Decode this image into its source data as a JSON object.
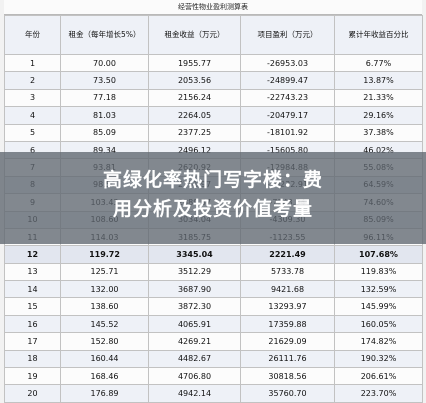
{
  "document": {
    "title": "经营性物业盈利测算表",
    "headers": [
      "年份",
      "租金（每年增长5%）",
      "租金收益（万元）",
      "项目盈利（万元）",
      "累计年收益百分比"
    ],
    "rows": [
      [
        "1",
        "70.00",
        "1955.77",
        "-26953.03",
        "6.77%"
      ],
      [
        "2",
        "73.50",
        "2053.56",
        "-24899.47",
        "13.87%"
      ],
      [
        "3",
        "77.18",
        "2156.24",
        "-22743.23",
        "21.33%"
      ],
      [
        "4",
        "81.03",
        "2264.05",
        "-20479.17",
        "29.16%"
      ],
      [
        "5",
        "85.09",
        "2377.25",
        "-18101.92",
        "37.38%"
      ],
      [
        "6",
        "89.34",
        "2496.12",
        "-15605.80",
        "46.02%"
      ],
      [
        "7",
        "93.81",
        "2620.92",
        "-12984.88",
        "55.08%"
      ],
      [
        "8",
        "98.50",
        "2751.97",
        "-10232.91",
        "64.59%"
      ],
      [
        "9",
        "103.43",
        "2889.57",
        "-7343.34",
        "74.60%"
      ],
      [
        "10",
        "108.60",
        "3034.04",
        "-4309.30",
        "85.09%"
      ],
      [
        "11",
        "114.03",
        "3185.75",
        "-1123.55",
        "96.11%"
      ],
      [
        "12",
        "119.72",
        "3345.04",
        "2221.49",
        "107.68%"
      ],
      [
        "13",
        "125.71",
        "3512.29",
        "5733.78",
        "119.83%"
      ],
      [
        "14",
        "132.00",
        "3687.90",
        "9421.68",
        "132.59%"
      ],
      [
        "15",
        "138.60",
        "3872.30",
        "13293.97",
        "145.99%"
      ],
      [
        "16",
        "145.52",
        "4065.91",
        "17359.88",
        "160.05%"
      ],
      [
        "17",
        "152.80",
        "4269.21",
        "21629.09",
        "174.82%"
      ],
      [
        "18",
        "160.44",
        "4482.67",
        "26111.76",
        "190.32%"
      ],
      [
        "19",
        "168.46",
        "4706.80",
        "30818.56",
        "206.61%"
      ],
      [
        "20",
        "176.89",
        "4942.14",
        "35760.70",
        "223.70%"
      ]
    ],
    "highlight_row_index": 11
  },
  "overlay": {
    "line1": "高绿化率热门写字楼：费",
    "line2": "用分析及投资价值考量"
  }
}
